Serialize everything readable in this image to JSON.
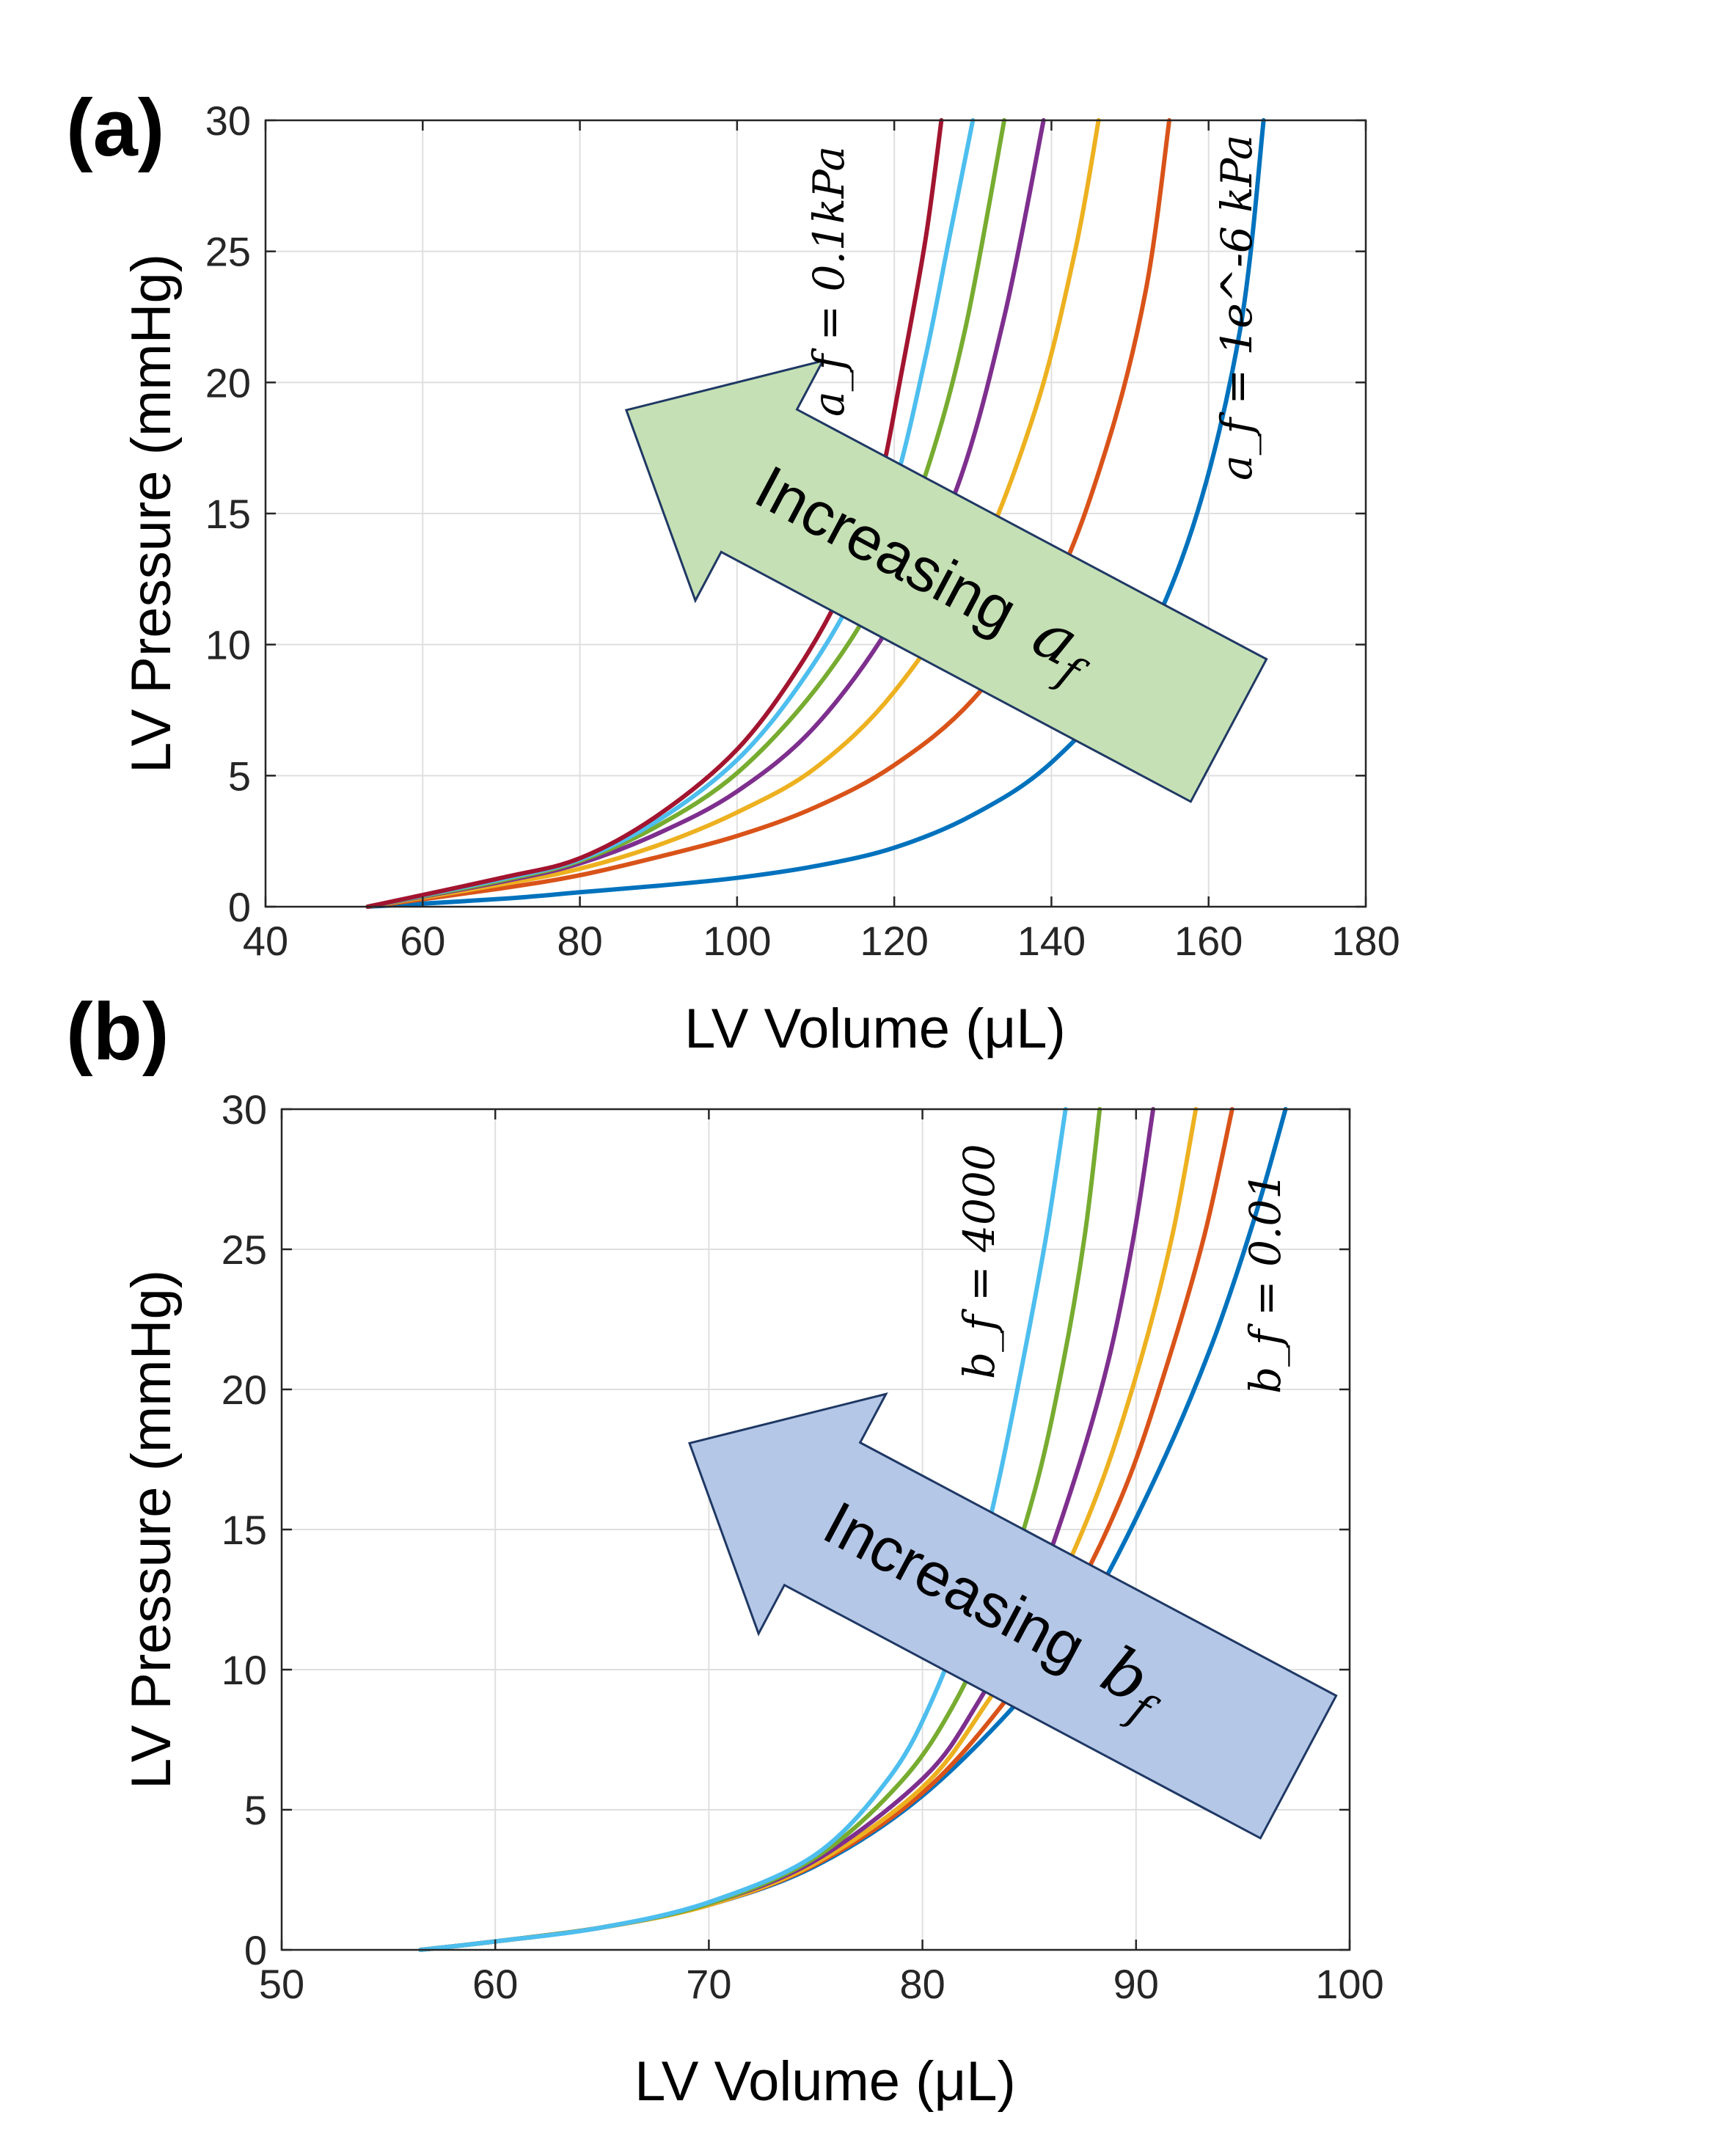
{
  "chart_data": [
    {
      "type": "line",
      "panel_label": "(a)",
      "xlabel": "LV Volume (μL)",
      "ylabel": "LV Pressure (mmHg)",
      "xlim": [
        40,
        180
      ],
      "ylim": [
        0,
        30
      ],
      "xticks": [
        40,
        60,
        80,
        100,
        120,
        140,
        160,
        180
      ],
      "yticks": [
        0,
        5,
        10,
        15,
        20,
        25,
        30
      ],
      "grid": true,
      "annotations": {
        "arrow_text": "Increasing",
        "arrow_symbol": "a",
        "arrow_subscript": "f",
        "arrow_color": "#c5e0b4",
        "label_high": "a_f = 0.1kPa",
        "label_low": "a_f = 1e^-6 kPa"
      },
      "series": [
        {
          "color": "#0072bd",
          "points": [
            [
              53,
              0
            ],
            [
              70,
              0.3
            ],
            [
              80,
              0.55
            ],
            [
              90,
              0.8
            ],
            [
              100,
              1.1
            ],
            [
              110,
              1.55
            ],
            [
              120,
              2.25
            ],
            [
              130,
              3.5
            ],
            [
              140,
              5.5
            ],
            [
              150,
              9
            ],
            [
              158,
              14.5
            ],
            [
              164,
              22
            ],
            [
              167,
              30
            ]
          ]
        },
        {
          "color": "#d95319",
          "points": [
            [
              53,
              0
            ],
            [
              70,
              0.7
            ],
            [
              80,
              1.2
            ],
            [
              90,
              1.9
            ],
            [
              100,
              2.7
            ],
            [
              110,
              3.8
            ],
            [
              120,
              5.4
            ],
            [
              130,
              7.9
            ],
            [
              140,
              12
            ],
            [
              147,
              17.5
            ],
            [
              152,
              23.5
            ],
            [
              155,
              30
            ]
          ]
        },
        {
          "color": "#edb120",
          "points": [
            [
              53,
              0
            ],
            [
              70,
              0.85
            ],
            [
              80,
              1.45
            ],
            [
              90,
              2.35
            ],
            [
              100,
              3.6
            ],
            [
              110,
              5.3
            ],
            [
              120,
              8.2
            ],
            [
              130,
              12.8
            ],
            [
              138,
              19
            ],
            [
              143,
              25
            ],
            [
              146,
              30
            ]
          ]
        },
        {
          "color": "#7e2f8e",
          "points": [
            [
              53,
              0
            ],
            [
              70,
              0.95
            ],
            [
              80,
              1.65
            ],
            [
              90,
              2.8
            ],
            [
              100,
              4.4
            ],
            [
              110,
              6.9
            ],
            [
              120,
              11
            ],
            [
              128,
              16
            ],
            [
              134,
              22.5
            ],
            [
              139,
              30
            ]
          ]
        },
        {
          "color": "#77ac30",
          "points": [
            [
              53,
              0
            ],
            [
              70,
              1.0
            ],
            [
              80,
              1.75
            ],
            [
              90,
              3.1
            ],
            [
              100,
              5.1
            ],
            [
              110,
              8.3
            ],
            [
              118,
              12
            ],
            [
              124,
              16.5
            ],
            [
              129,
              22
            ],
            [
              134,
              30
            ]
          ]
        },
        {
          "color": "#4dbeee",
          "points": [
            [
              53,
              0
            ],
            [
              70,
              1.05
            ],
            [
              80,
              1.8
            ],
            [
              90,
              3.3
            ],
            [
              100,
              5.6
            ],
            [
              108,
              8.5
            ],
            [
              115,
              12
            ],
            [
              120,
              16
            ],
            [
              124,
              21
            ],
            [
              127,
              25.5
            ],
            [
              130,
              30
            ]
          ]
        },
        {
          "color": "#a2142f",
          "points": [
            [
              53,
              0
            ],
            [
              70,
              1.1
            ],
            [
              80,
              1.85
            ],
            [
              90,
              3.5
            ],
            [
              100,
              6
            ],
            [
              108,
              9.2
            ],
            [
              114,
              12.5
            ],
            [
              118,
              16
            ],
            [
              121,
              20.5
            ],
            [
              124,
              25.5
            ],
            [
              126,
              30
            ]
          ]
        }
      ]
    },
    {
      "type": "line",
      "panel_label": "(b)",
      "xlabel": "LV Volume (μL)",
      "ylabel": "LV Pressure (mmHg)",
      "xlim": [
        50,
        100
      ],
      "ylim": [
        0,
        30
      ],
      "xticks": [
        50,
        60,
        70,
        80,
        90,
        100
      ],
      "yticks": [
        0,
        5,
        10,
        15,
        20,
        25,
        30
      ],
      "grid": true,
      "annotations": {
        "arrow_text": "Increasing",
        "arrow_symbol": "b",
        "arrow_subscript": "f",
        "arrow_color": "#b4c7e7",
        "label_high": "b_f = 4000",
        "label_low": "b_f = 0.01"
      },
      "series": [
        {
          "color": "#0072bd",
          "points": [
            [
              56.5,
              0
            ],
            [
              60,
              0.3
            ],
            [
              65,
              0.8
            ],
            [
              70,
              1.6
            ],
            [
              75,
              3
            ],
            [
              80,
              5.5
            ],
            [
              85,
              9.3
            ],
            [
              88,
              12.5
            ],
            [
              91,
              17
            ],
            [
              93.5,
              21.5
            ],
            [
              95.5,
              26
            ],
            [
              97,
              30
            ]
          ]
        },
        {
          "color": "#d95319",
          "points": [
            [
              56.5,
              0
            ],
            [
              60,
              0.3
            ],
            [
              65,
              0.8
            ],
            [
              70,
              1.6
            ],
            [
              75,
              3.05
            ],
            [
              80,
              5.6
            ],
            [
              84,
              9
            ],
            [
              87,
              12.5
            ],
            [
              89.5,
              16.5
            ],
            [
              91.5,
              21
            ],
            [
              93.2,
              25.5
            ],
            [
              94.5,
              30
            ]
          ]
        },
        {
          "color": "#edb120",
          "points": [
            [
              56.5,
              0
            ],
            [
              60,
              0.3
            ],
            [
              65,
              0.8
            ],
            [
              70,
              1.6
            ],
            [
              75,
              3.1
            ],
            [
              80,
              5.8
            ],
            [
              83,
              8.8
            ],
            [
              86,
              12.5
            ],
            [
              88.3,
              16.5
            ],
            [
              90.2,
              21
            ],
            [
              91.7,
              25.5
            ],
            [
              92.8,
              30
            ]
          ]
        },
        {
          "color": "#7e2f8e",
          "points": [
            [
              56.5,
              0
            ],
            [
              60,
              0.3
            ],
            [
              65,
              0.8
            ],
            [
              70,
              1.65
            ],
            [
              75,
              3.2
            ],
            [
              80,
              6.1
            ],
            [
              82.5,
              8.7
            ],
            [
              85,
              12.3
            ],
            [
              87,
              16.5
            ],
            [
              88.7,
              21
            ],
            [
              89.9,
              25.5
            ],
            [
              90.8,
              30
            ]
          ]
        },
        {
          "color": "#77ac30",
          "points": [
            [
              56.5,
              0
            ],
            [
              60,
              0.3
            ],
            [
              65,
              0.8
            ],
            [
              70,
              1.65
            ],
            [
              75,
              3.3
            ],
            [
              79,
              6
            ],
            [
              81.5,
              8.8
            ],
            [
              83.5,
              12.2
            ],
            [
              85.3,
              16.5
            ],
            [
              86.6,
              21
            ],
            [
              87.6,
              25.5
            ],
            [
              88.3,
              30
            ]
          ]
        },
        {
          "color": "#4dbeee",
          "points": [
            [
              56.5,
              0
            ],
            [
              60,
              0.3
            ],
            [
              65,
              0.8
            ],
            [
              70,
              1.7
            ],
            [
              75,
              3.4
            ],
            [
              78.5,
              6.2
            ],
            [
              80.5,
              9
            ],
            [
              82.2,
              12.5
            ],
            [
              83.5,
              16.5
            ],
            [
              84.7,
              21
            ],
            [
              85.8,
              25.5
            ],
            [
              86.7,
              30
            ]
          ]
        }
      ]
    }
  ]
}
